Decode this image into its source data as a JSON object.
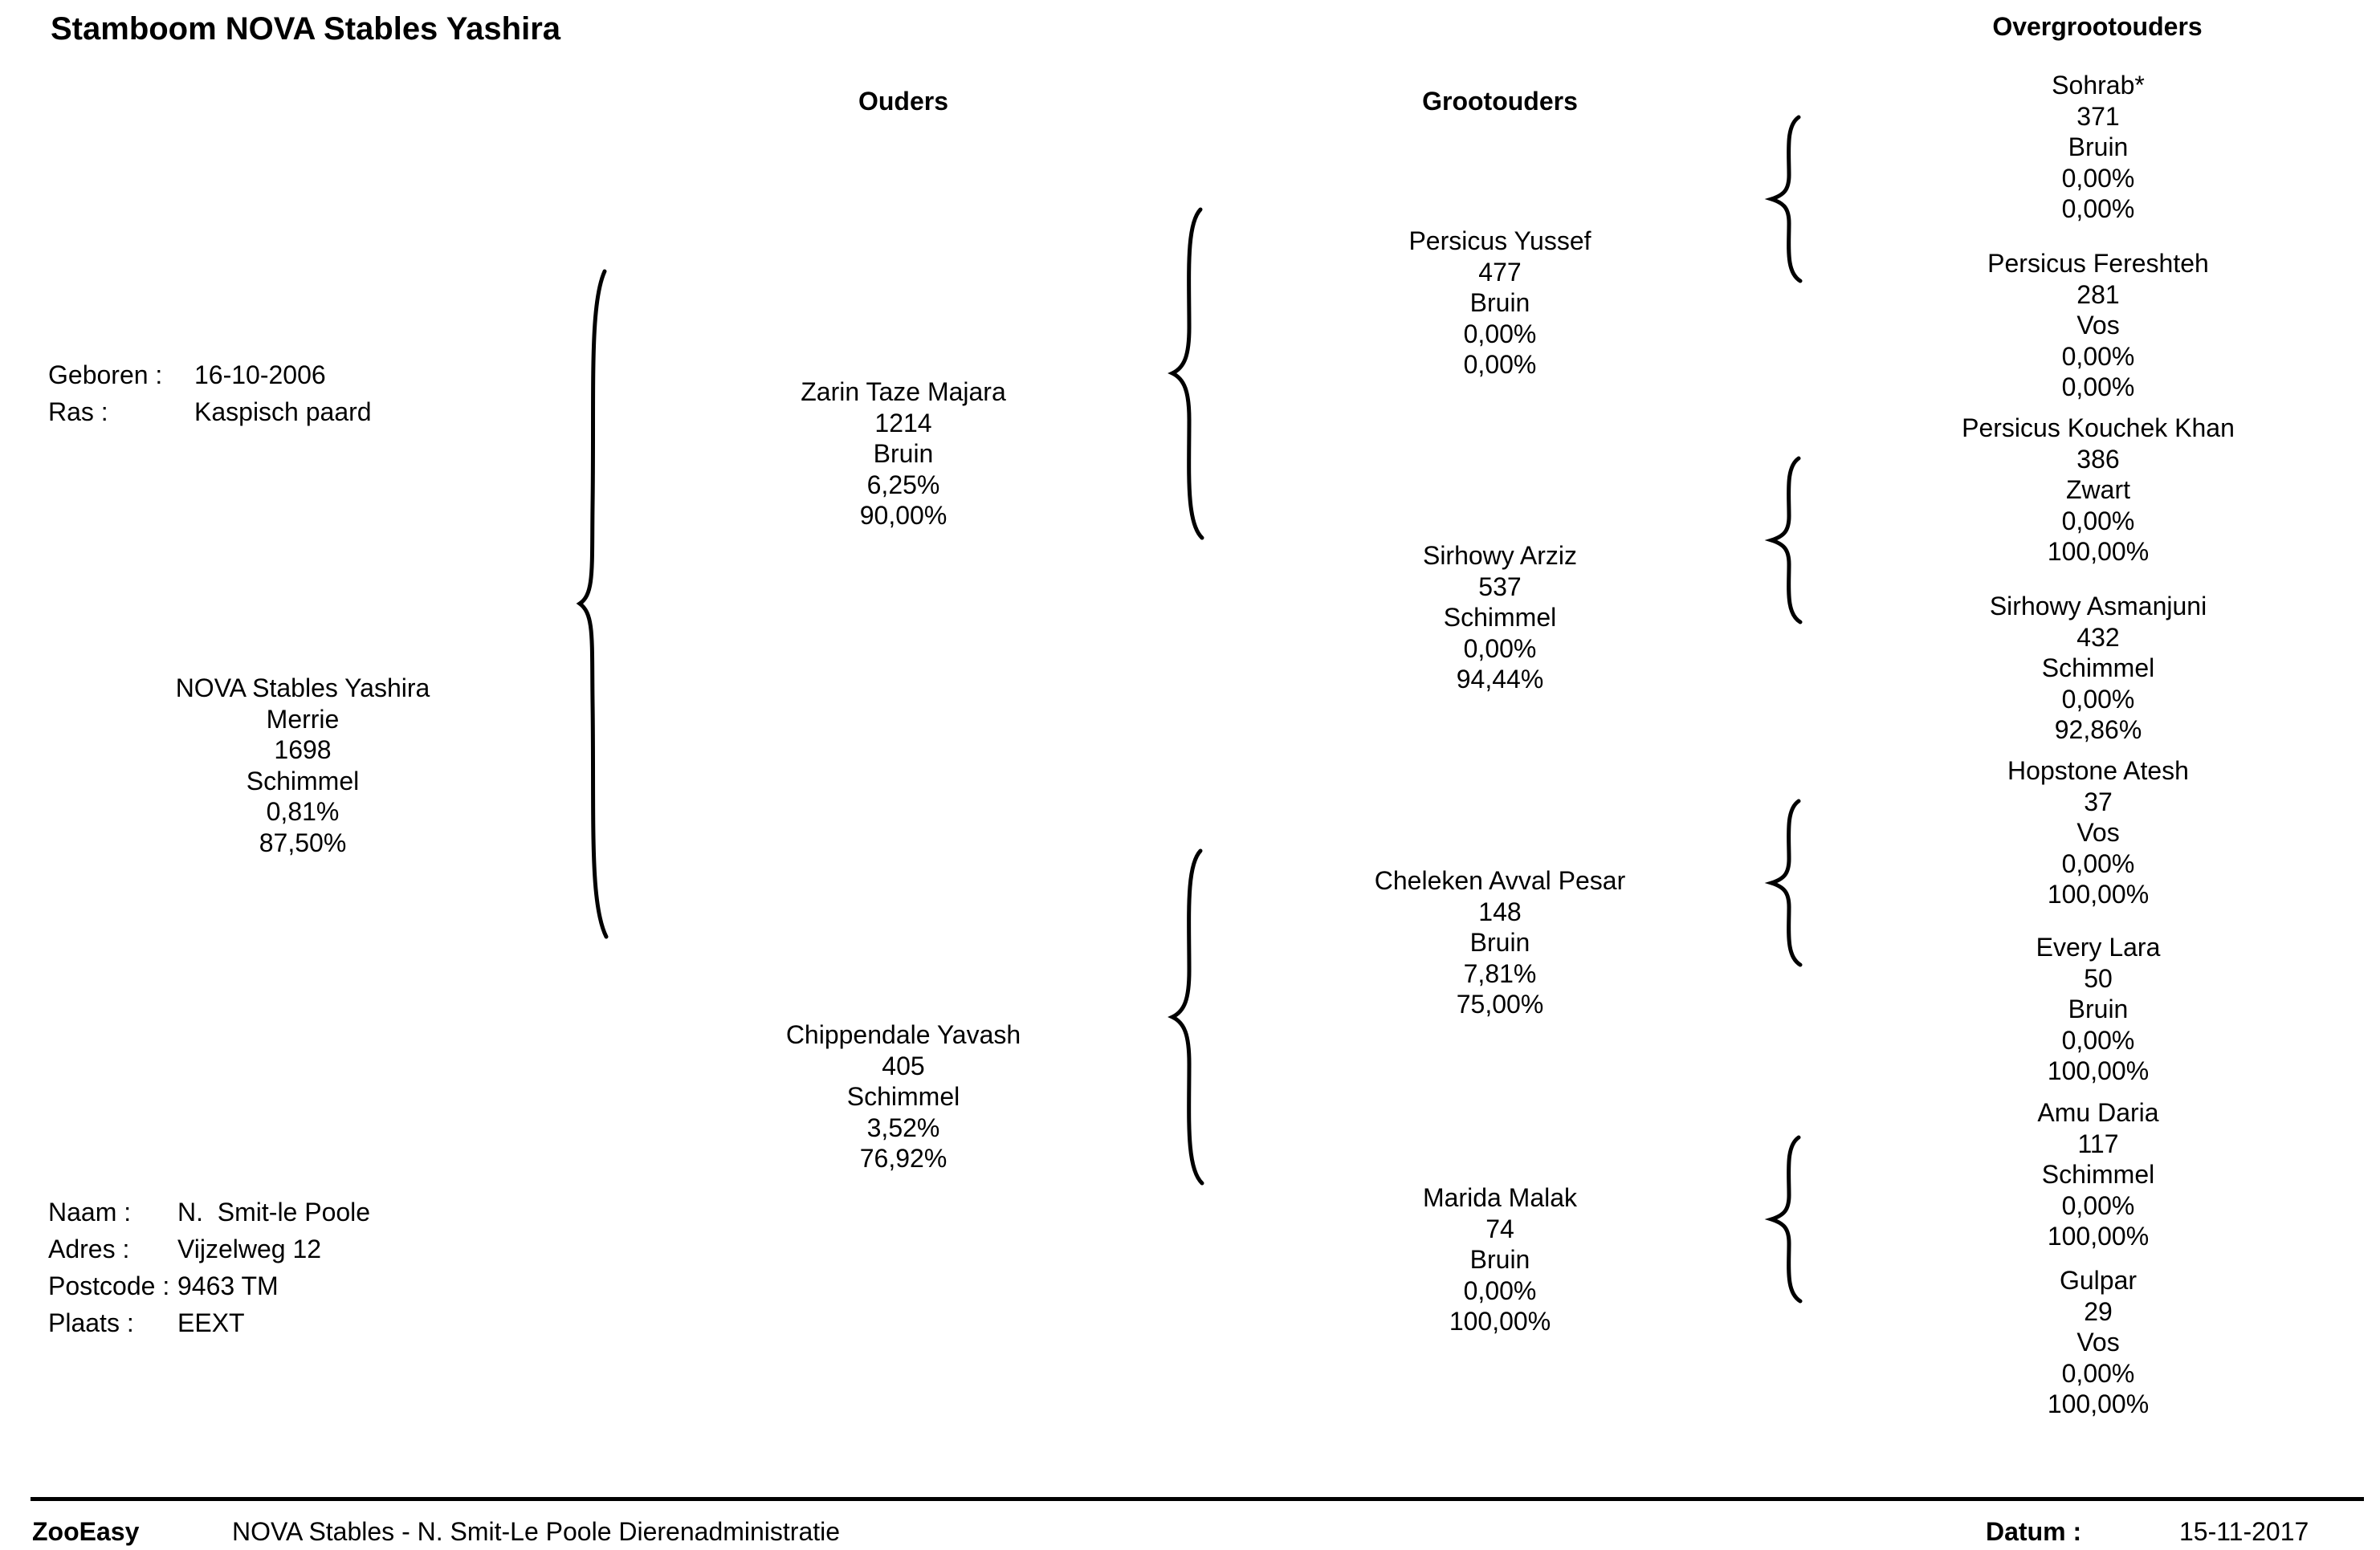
{
  "title": "Stamboom NOVA Stables Yashira",
  "headers": {
    "parents": "Ouders",
    "grandparents": "Grootouders",
    "great_grandparents": "Overgrootouders"
  },
  "info": {
    "born_label": "Geboren :",
    "born_value": "16-10-2006",
    "breed_label": "Ras :",
    "breed_value": "Kaspisch paard"
  },
  "subject": {
    "name": "NOVA Stables Yashira",
    "sex": "Merrie",
    "number": "1698",
    "color": "Schimmel",
    "pct1": "0,81%",
    "pct2": "87,50%"
  },
  "parents": [
    {
      "name": "Zarin Taze Majara",
      "number": "1214",
      "color": "Bruin",
      "pct1": "6,25%",
      "pct2": "90,00%"
    },
    {
      "name": "Chippendale Yavash",
      "number": "405",
      "color": "Schimmel",
      "pct1": "3,52%",
      "pct2": "76,92%"
    }
  ],
  "grandparents": [
    {
      "name": "Persicus Yussef",
      "number": "477",
      "color": "Bruin",
      "pct1": "0,00%",
      "pct2": "0,00%"
    },
    {
      "name": "Sirhowy Arziz",
      "number": "537",
      "color": "Schimmel",
      "pct1": "0,00%",
      "pct2": "94,44%"
    },
    {
      "name": "Cheleken Avval Pesar",
      "number": "148",
      "color": "Bruin",
      "pct1": "7,81%",
      "pct2": "75,00%"
    },
    {
      "name": "Marida Malak",
      "number": "74",
      "color": "Bruin",
      "pct1": "0,00%",
      "pct2": "100,00%"
    }
  ],
  "great_grandparents": [
    {
      "name": "Sohrab*",
      "number": "371",
      "color": "Bruin",
      "pct1": "0,00%",
      "pct2": "0,00%"
    },
    {
      "name": "Persicus Fereshteh",
      "number": "281",
      "color": "Vos",
      "pct1": "0,00%",
      "pct2": "0,00%"
    },
    {
      "name": "Persicus Kouchek Khan",
      "number": "386",
      "color": "Zwart",
      "pct1": "0,00%",
      "pct2": "100,00%"
    },
    {
      "name": "Sirhowy Asmanjuni",
      "number": "432",
      "color": "Schimmel",
      "pct1": "0,00%",
      "pct2": "92,86%"
    },
    {
      "name": "Hopstone Atesh",
      "number": "37",
      "color": "Vos",
      "pct1": "0,00%",
      "pct2": "100,00%"
    },
    {
      "name": "Every Lara",
      "number": "50",
      "color": "Bruin",
      "pct1": "0,00%",
      "pct2": "100,00%"
    },
    {
      "name": "Amu Daria",
      "number": "117",
      "color": "Schimmel",
      "pct1": "0,00%",
      "pct2": "100,00%"
    },
    {
      "name": "Gulpar",
      "number": "29",
      "color": "Vos",
      "pct1": "0,00%",
      "pct2": "100,00%"
    }
  ],
  "owner": {
    "name_label": "Naam :",
    "name_value": "N.  Smit-le Poole",
    "address_label": "Adres :",
    "address_value": "Vijzelweg 12",
    "postcode_label": "Postcode :",
    "postcode_value": "9463 TM",
    "city_label": "Plaats :",
    "city_value": "EEXT"
  },
  "footer": {
    "app": "ZooEasy",
    "org": "NOVA Stables - N. Smit-Le Poole Dierenadministratie",
    "date_label": "Datum :",
    "date_value": "15-11-2017"
  }
}
